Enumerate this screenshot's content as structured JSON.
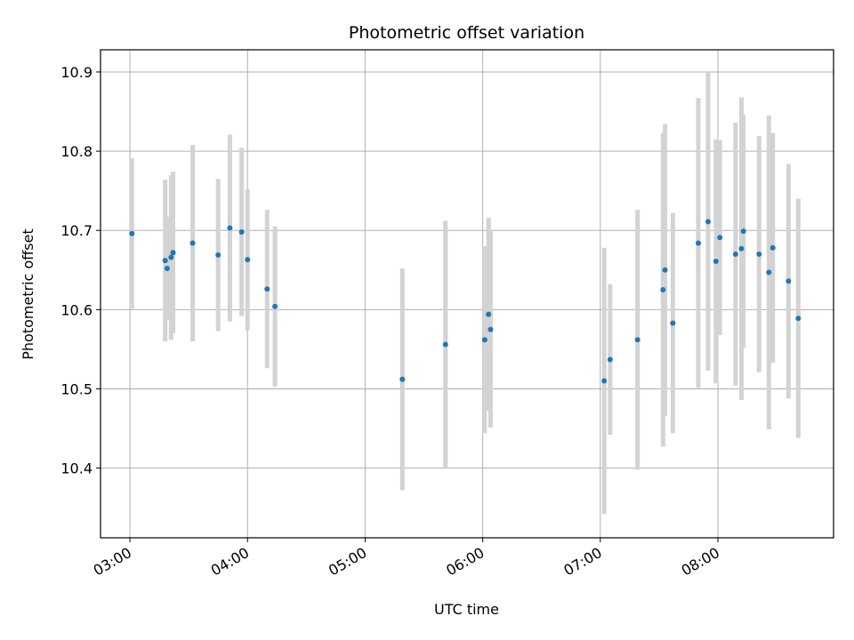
{
  "chart_data": {
    "type": "scatter",
    "title": "Photometric offset variation",
    "xlabel": "UTC time",
    "ylabel": "Photometric offset",
    "x_unit": "UTC time (hours)",
    "xlim": [
      "02:45",
      "08:59"
    ],
    "ylim": [
      10.312,
      10.928
    ],
    "x_tick_labels": [
      "03:00",
      "04:00",
      "05:00",
      "06:00",
      "07:00",
      "08:00"
    ],
    "y_tick_labels": [
      "10.4",
      "10.5",
      "10.6",
      "10.7",
      "10.8",
      "10.9"
    ],
    "grid": true,
    "colors": {
      "points": "#1f77b4",
      "errorbars": "#d3d3d3",
      "grid": "#b0b0b0"
    },
    "points": [
      {
        "x": "03:01",
        "y": 10.696,
        "err": 0.095
      },
      {
        "x": "03:18",
        "y": 10.662,
        "err": 0.102
      },
      {
        "x": "03:19",
        "y": 10.652,
        "err": 0.065
      },
      {
        "x": "03:21",
        "y": 10.666,
        "err": 0.104
      },
      {
        "x": "03:22",
        "y": 10.672,
        "err": 0.102
      },
      {
        "x": "03:32",
        "y": 10.684,
        "err": 0.124
      },
      {
        "x": "03:45",
        "y": 10.669,
        "err": 0.096
      },
      {
        "x": "03:51",
        "y": 10.703,
        "err": 0.118
      },
      {
        "x": "03:57",
        "y": 10.698,
        "err": 0.106
      },
      {
        "x": "04:00",
        "y": 10.663,
        "err": 0.089
      },
      {
        "x": "04:10",
        "y": 10.626,
        "err": 0.1
      },
      {
        "x": "04:14",
        "y": 10.604,
        "err": 0.101
      },
      {
        "x": "05:19",
        "y": 10.512,
        "err": 0.14
      },
      {
        "x": "05:41",
        "y": 10.556,
        "err": 0.156
      },
      {
        "x": "06:01",
        "y": 10.562,
        "err": 0.118
      },
      {
        "x": "06:03",
        "y": 10.594,
        "err": 0.122
      },
      {
        "x": "06:04",
        "y": 10.575,
        "err": 0.124
      },
      {
        "x": "07:02",
        "y": 10.51,
        "err": 0.168
      },
      {
        "x": "07:05",
        "y": 10.537,
        "err": 0.095
      },
      {
        "x": "07:19",
        "y": 10.562,
        "err": 0.164
      },
      {
        "x": "07:32",
        "y": 10.625,
        "err": 0.198
      },
      {
        "x": "07:33",
        "y": 10.65,
        "err": 0.184
      },
      {
        "x": "07:37",
        "y": 10.583,
        "err": 0.139
      },
      {
        "x": "07:50",
        "y": 10.684,
        "err": 0.183
      },
      {
        "x": "07:55",
        "y": 10.711,
        "err": 0.188
      },
      {
        "x": "07:59",
        "y": 10.661,
        "err": 0.154
      },
      {
        "x": "08:01",
        "y": 10.691,
        "err": 0.123
      },
      {
        "x": "08:09",
        "y": 10.67,
        "err": 0.166
      },
      {
        "x": "08:12",
        "y": 10.677,
        "err": 0.191
      },
      {
        "x": "08:13",
        "y": 10.699,
        "err": 0.147
      },
      {
        "x": "08:21",
        "y": 10.67,
        "err": 0.149
      },
      {
        "x": "08:26",
        "y": 10.647,
        "err": 0.198
      },
      {
        "x": "08:28",
        "y": 10.678,
        "err": 0.145
      },
      {
        "x": "08:36",
        "y": 10.636,
        "err": 0.148
      },
      {
        "x": "08:41",
        "y": 10.589,
        "err": 0.151
      }
    ]
  }
}
